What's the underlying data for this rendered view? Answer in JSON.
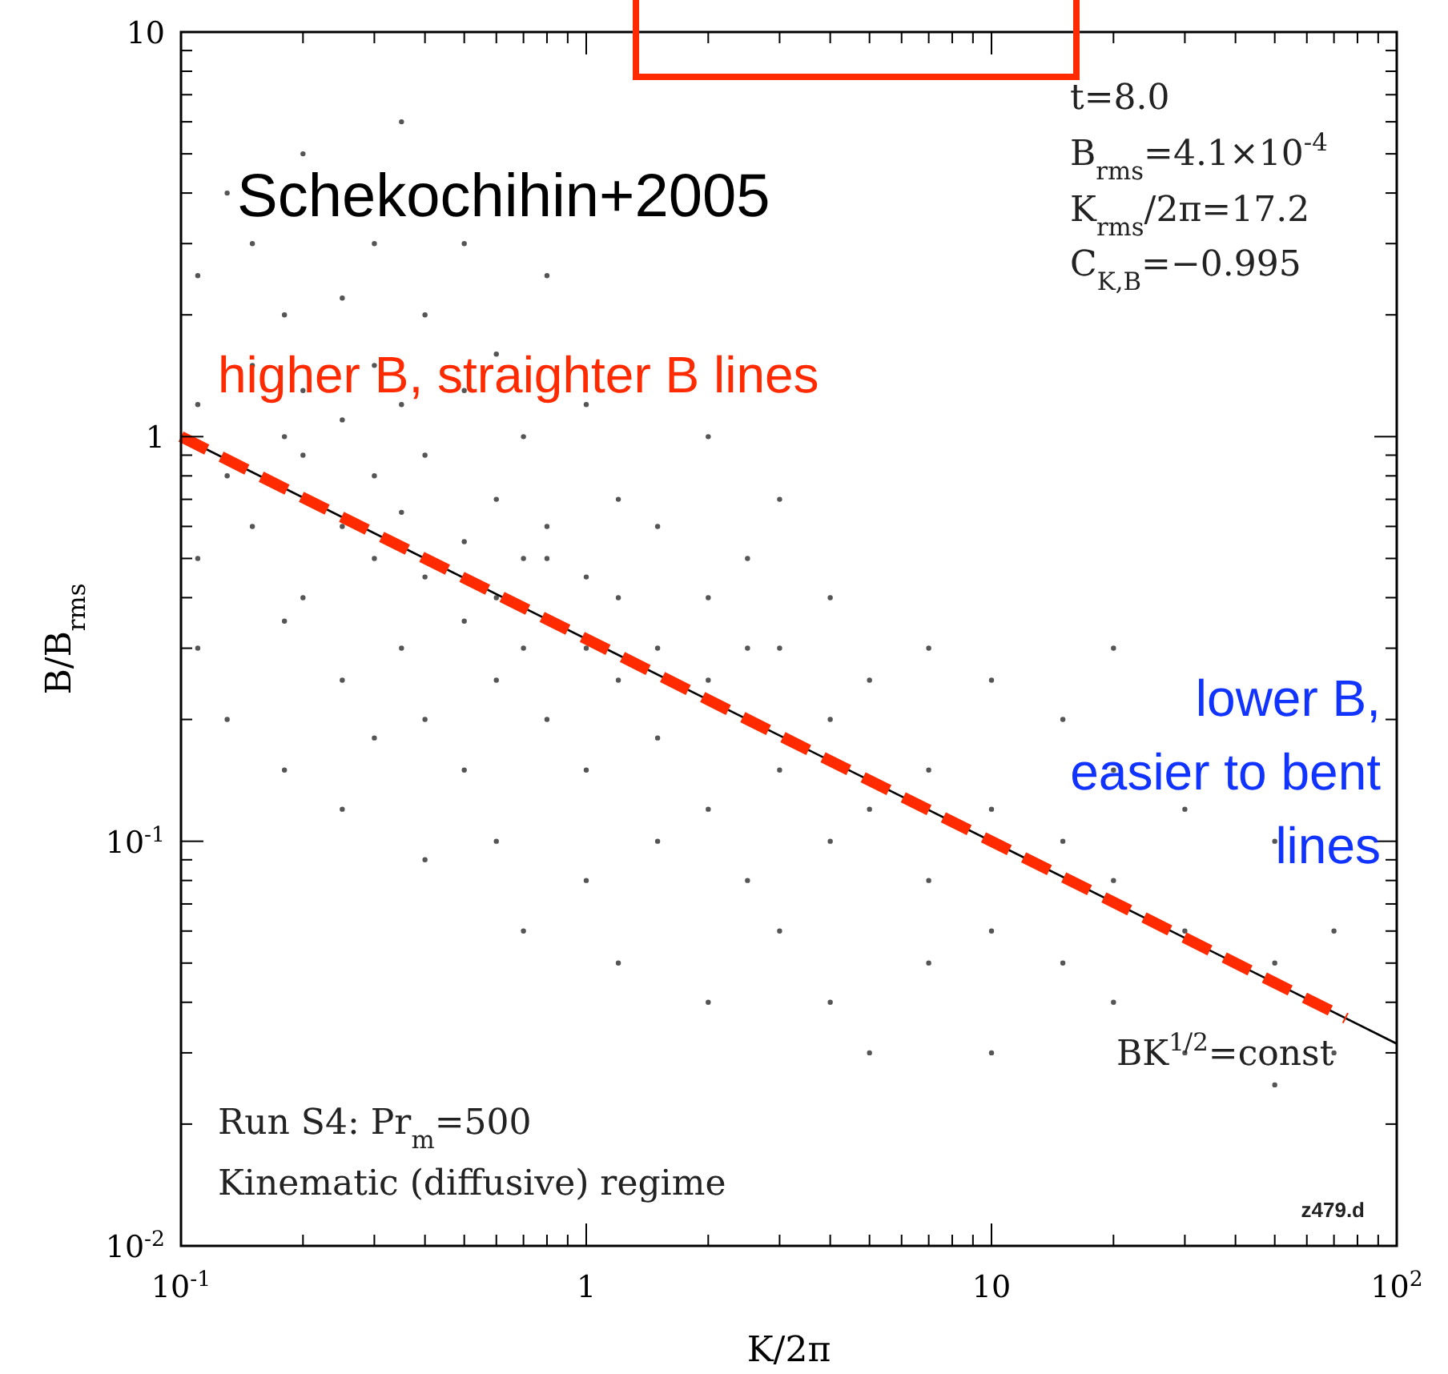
{
  "chart_data": {
    "type": "scatter",
    "xlabel": "K/2π",
    "ylabel": "B/B$_{rms}$",
    "log": "xy",
    "grid": false,
    "xlim": [
      0.1,
      100
    ],
    "ylim": [
      0.01,
      10
    ],
    "xticks": [
      {
        "value": 0.1,
        "label": "10$^{-1}$"
      },
      {
        "value": 0.2,
        "label": null
      },
      {
        "value": 0.3,
        "label": null
      },
      {
        "value": 0.4,
        "label": null
      },
      {
        "value": 0.5,
        "label": null
      },
      {
        "value": 0.6,
        "label": null
      },
      {
        "value": 0.7,
        "label": null
      },
      {
        "value": 0.8,
        "label": null
      },
      {
        "value": 0.9,
        "label": null
      },
      1,
      {
        "value": 2,
        "label": null
      },
      {
        "value": 3,
        "label": null
      },
      {
        "value": 4,
        "label": null
      },
      {
        "value": 5,
        "label": null
      },
      {
        "value": 6,
        "label": null
      },
      {
        "value": 7,
        "label": null
      },
      {
        "value": 8,
        "label": null
      },
      {
        "value": 9,
        "label": null
      },
      10,
      {
        "value": 20,
        "label": null
      },
      {
        "value": 30,
        "label": null
      },
      {
        "value": 40,
        "label": null
      },
      {
        "value": 50,
        "label": null
      },
      {
        "value": 60,
        "label": null
      },
      {
        "value": 70,
        "label": null
      },
      {
        "value": 80,
        "label": null
      },
      {
        "value": 90,
        "label": null
      },
      {
        "value": 100,
        "label": "10$^{2}$"
      }
    ],
    "yticks": [
      {
        "value": 0.01,
        "label": "10$^{-2}$"
      },
      {
        "value": 0.02,
        "label": null
      },
      {
        "value": 0.03,
        "label": null
      },
      {
        "value": 0.04,
        "label": null
      },
      {
        "value": 0.05,
        "label": null
      },
      {
        "value": 0.06,
        "label": null
      },
      {
        "value": 0.07,
        "label": null
      },
      {
        "value": 0.08,
        "label": null
      },
      {
        "value": 0.09,
        "label": null
      },
      {
        "value": 0.1,
        "label": "10$^{-1}$"
      },
      {
        "value": 0.2,
        "label": null
      },
      {
        "value": 0.3,
        "label": null
      },
      {
        "value": 0.4,
        "label": null
      },
      {
        "value": 0.5,
        "label": null
      },
      {
        "value": 0.6,
        "label": null
      },
      {
        "value": 0.7,
        "label": null
      },
      {
        "value": 0.8,
        "label": null
      },
      {
        "value": 0.9,
        "label": null
      },
      1,
      {
        "value": 2,
        "label": null
      },
      {
        "value": 3,
        "label": null
      },
      {
        "value": 4,
        "label": null
      },
      {
        "value": 5,
        "label": null
      },
      {
        "value": 6,
        "label": null
      },
      {
        "value": 7,
        "label": null
      },
      {
        "value": 8,
        "label": null
      },
      {
        "value": 9,
        "label": null
      },
      10
    ],
    "series": [
      {
        "color": "#555555",
        "marker": "circle",
        "x": [
          0.11,
          0.11,
          0.11,
          0.11,
          0.13,
          0.13,
          0.13,
          0.15,
          0.15,
          0.15,
          0.18,
          0.18,
          0.18,
          0.18,
          0.2,
          0.2,
          0.2,
          0.2,
          0.25,
          0.25,
          0.25,
          0.25,
          0.25,
          0.3,
          0.3,
          0.3,
          0.3,
          0.3,
          0.35,
          0.35,
          0.35,
          0.35,
          0.4,
          0.4,
          0.4,
          0.4,
          0.4,
          0.5,
          0.5,
          0.5,
          0.5,
          0.5,
          0.6,
          0.6,
          0.6,
          0.6,
          0.6,
          0.7,
          0.7,
          0.7,
          0.7,
          0.8,
          0.8,
          0.8,
          0.8,
          1,
          1,
          1,
          1,
          1,
          1.2,
          1.2,
          1.2,
          1.2,
          1.5,
          1.5,
          1.5,
          1.5,
          2,
          2,
          2,
          2,
          2,
          2.5,
          2.5,
          2.5,
          3,
          3,
          3,
          3,
          4,
          4,
          4,
          4,
          5,
          5,
          5,
          7,
          7,
          7,
          7,
          10,
          10,
          10,
          10,
          15,
          15,
          15,
          20,
          20,
          20,
          20,
          30,
          30,
          30,
          50,
          50,
          50,
          70,
          70
        ],
        "values": [
          0.5,
          1.2,
          2.5,
          0.3,
          0.8,
          4,
          0.2,
          1.5,
          0.6,
          3,
          0.35,
          1,
          2,
          0.15,
          5,
          0.9,
          0.4,
          1.3,
          0.25,
          0.6,
          1.1,
          2.2,
          0.12,
          0.5,
          0.8,
          3,
          0.18,
          1.5,
          0.3,
          0.65,
          1.2,
          6,
          0.2,
          0.45,
          0.9,
          2,
          0.09,
          0.35,
          0.55,
          0.15,
          1.3,
          3,
          0.25,
          0.4,
          0.7,
          0.1,
          1.6,
          0.3,
          0.5,
          0.06,
          1,
          0.2,
          0.5,
          0.6,
          2.5,
          0.15,
          0.3,
          0.45,
          0.08,
          1.2,
          0.25,
          0.4,
          0.05,
          0.7,
          0.18,
          0.3,
          0.1,
          0.6,
          0.12,
          0.25,
          0.4,
          0.04,
          1,
          0.3,
          0.08,
          0.5,
          0.15,
          0.3,
          0.06,
          0.7,
          0.1,
          0.2,
          0.04,
          0.4,
          0.12,
          0.25,
          0.03,
          0.08,
          0.15,
          0.3,
          0.05,
          0.06,
          0.12,
          0.25,
          0.03,
          0.05,
          0.1,
          0.2,
          0.04,
          0.08,
          0.15,
          0.3,
          0.03,
          0.06,
          0.12,
          0.025,
          0.05,
          0.1,
          0.03,
          0.06
        ]
      },
      {
        "type": "line",
        "color": "#000000",
        "line_style": "solid",
        "x": [
          0.1,
          100
        ],
        "values": [
          1,
          0.0316
        ]
      },
      {
        "type": "line",
        "color": "#ff2a00",
        "line_style": "dashed",
        "x": [
          0.1,
          75
        ],
        "values": [
          1,
          0.0365
        ]
      }
    ],
    "annotations": [
      "Schekochihin+2005",
      "higher B, straighter B lines",
      "lower B,",
      "easier to bent",
      "lines",
      "t=8.0",
      "B$_{rms}$=4.1×10$^{-4}$",
      "K$_{rms}$/2π=17.2",
      "C$_{K,B}$=−0.995",
      "BK$^{1/2}$=const",
      "Run S4: Pr$_{m}$=500",
      "Kinematic (diffusive) regime",
      "z479.d"
    ]
  }
}
